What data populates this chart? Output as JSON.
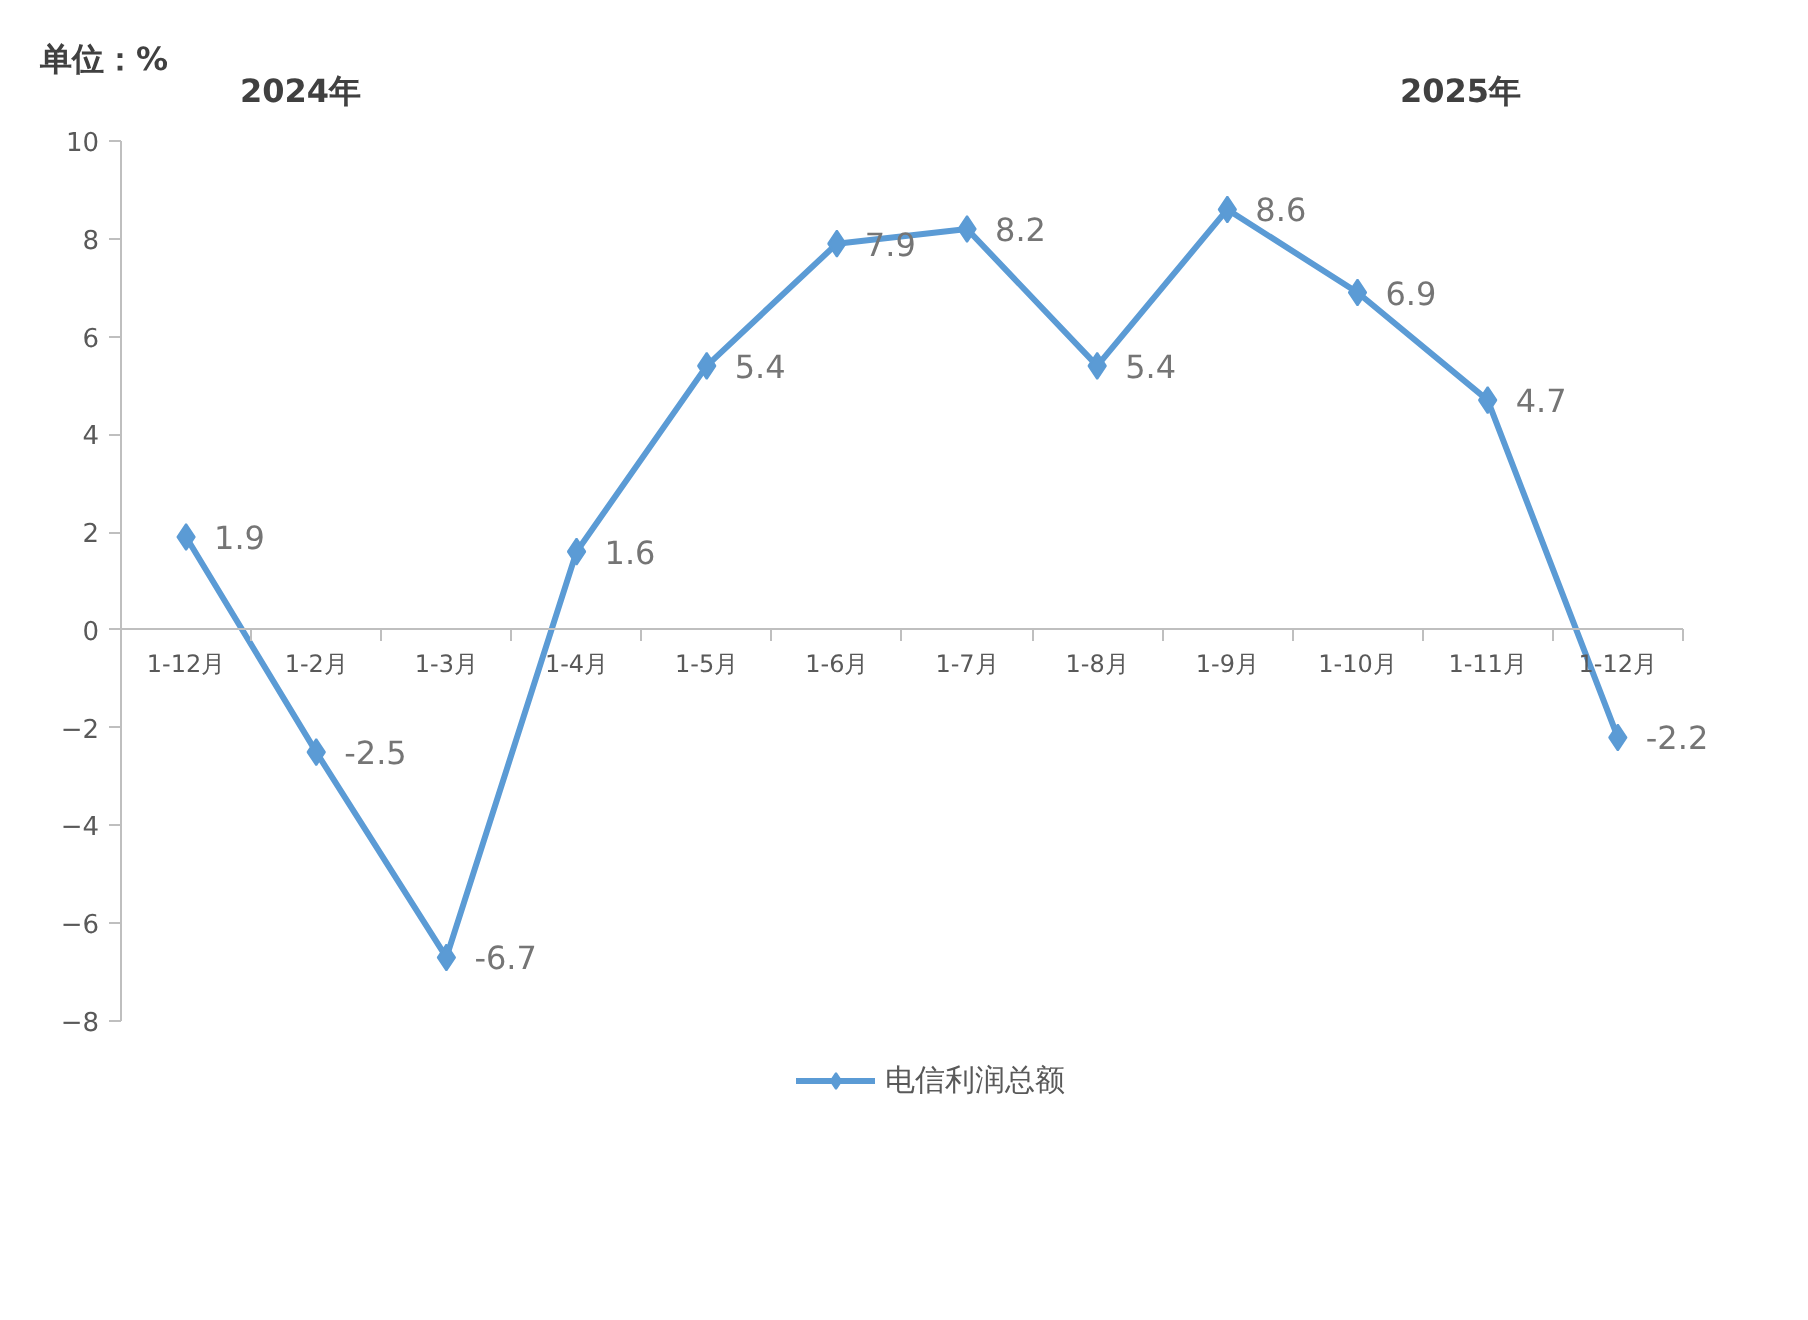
{
  "chart_data": {
    "type": "line",
    "categories": [
      "1-12月",
      "1-2月",
      "1-3月",
      "1-4月",
      "1-5月",
      "1-6月",
      "1-7月",
      "1-8月",
      "1-9月",
      "1-10月",
      "1-11月",
      "1-12月"
    ],
    "series": [
      {
        "name": "电信利润总额",
        "color": "#5b9bd5",
        "values": [
          1.9,
          -2.5,
          -6.7,
          1.6,
          5.4,
          7.9,
          8.2,
          5.4,
          8.6,
          6.9,
          4.7,
          -2.2
        ]
      }
    ],
    "ylim": [
      -8,
      10
    ],
    "yticks": [
      -8,
      -6,
      -4,
      -2,
      0,
      2,
      4,
      6,
      8,
      10
    ],
    "grid": false,
    "legend": "bottom",
    "marker": "diamond",
    "line_style": "solid",
    "data_labels": true,
    "annotations": [
      "单位：%",
      "2024年",
      "2025年"
    ]
  }
}
